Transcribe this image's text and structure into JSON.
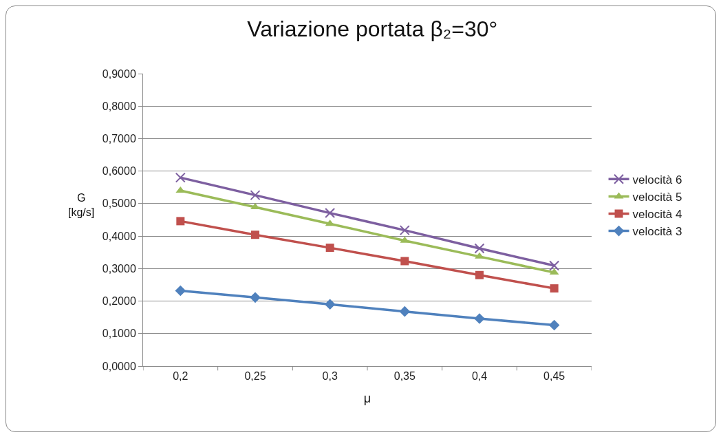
{
  "chart_data": {
    "type": "line",
    "title": "Variazione portata β₂=30°",
    "xlabel": "μ",
    "ylabel": "G\n[kg/s]",
    "categories": [
      "0,2",
      "0,25",
      "0,3",
      "0,35",
      "0,4",
      "0,45"
    ],
    "series": [
      {
        "name": "velocità 6",
        "color": "#7d5fa0",
        "marker": "cross",
        "values": [
          0.58,
          0.526,
          0.471,
          0.418,
          0.362,
          0.309
        ]
      },
      {
        "name": "velocità 5",
        "color": "#9bbb59",
        "marker": "triangle",
        "values": [
          0.54,
          0.489,
          0.438,
          0.386,
          0.337,
          0.288
        ]
      },
      {
        "name": "velocità 4",
        "color": "#c0504d",
        "marker": "square",
        "values": [
          0.446,
          0.404,
          0.364,
          0.323,
          0.28,
          0.239
        ]
      },
      {
        "name": "velocità 3",
        "color": "#4f81bd",
        "marker": "diamond",
        "values": [
          0.232,
          0.211,
          0.19,
          0.168,
          0.146,
          0.126
        ]
      }
    ],
    "ylim": [
      0,
      0.9
    ],
    "yticks": [
      {
        "value": 0,
        "label": "0,0000"
      },
      {
        "value": 0.1,
        "label": "0,1000"
      },
      {
        "value": 0.2,
        "label": "0,2000"
      },
      {
        "value": 0.3,
        "label": "0,3000"
      },
      {
        "value": 0.4,
        "label": "0,4000"
      },
      {
        "value": 0.5,
        "label": "0,5000"
      },
      {
        "value": 0.6,
        "label": "0,6000"
      },
      {
        "value": 0.7,
        "label": "0,7000"
      },
      {
        "value": 0.8,
        "label": "0,8000"
      },
      {
        "value": 0.9,
        "label": "0,9000"
      }
    ],
    "grid": "y",
    "legend": "right"
  }
}
